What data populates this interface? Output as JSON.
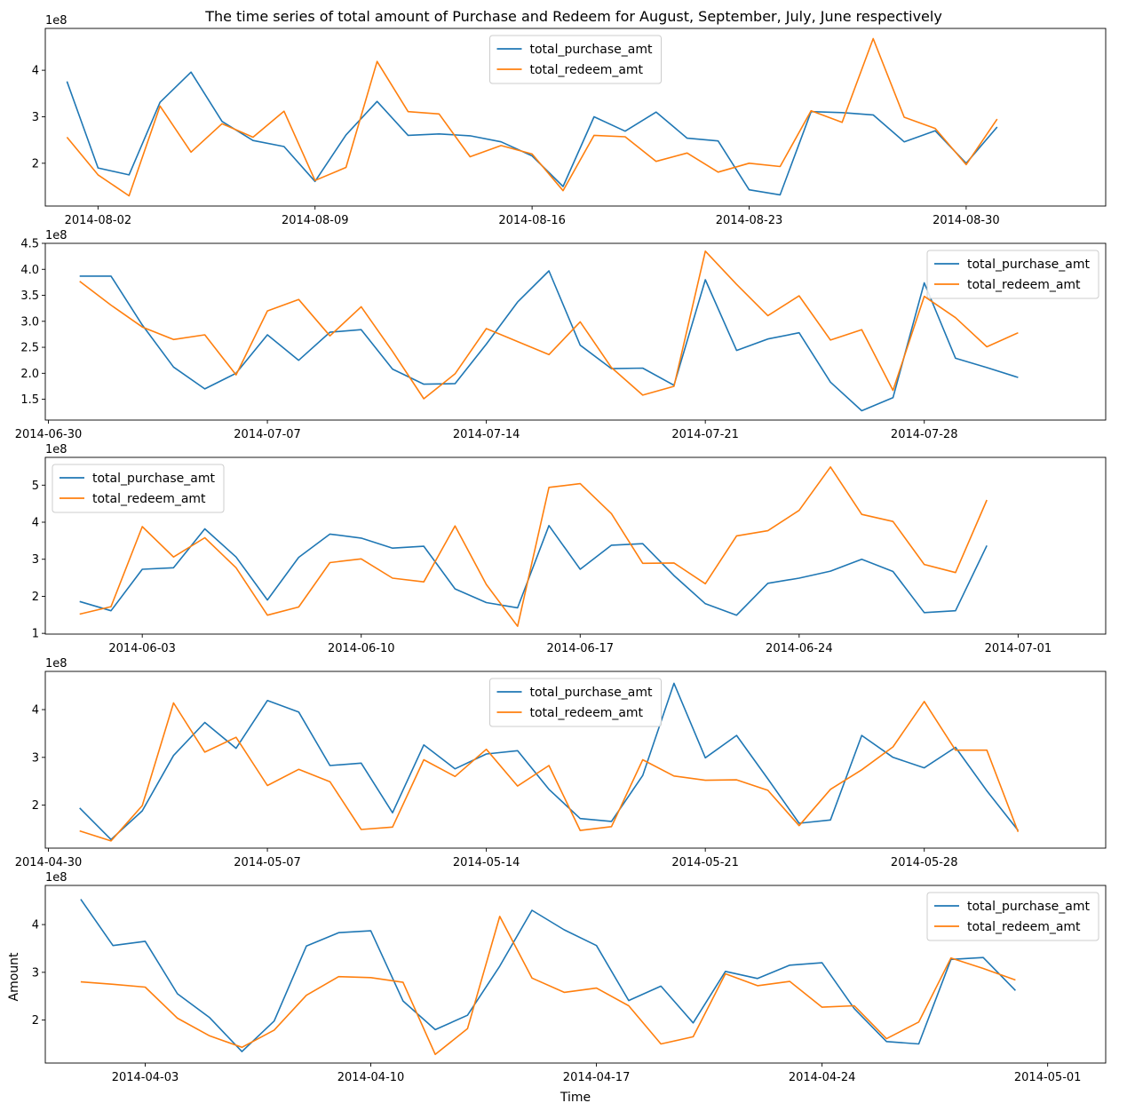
{
  "title": "The time series of total amount of Purchase and Redeem for August, September, July, June respectively",
  "xlabel": "Time",
  "ylabel": "Amount",
  "colors": {
    "purchase": "#1f77b4",
    "redeem": "#ff7f0e"
  },
  "chart_data": [
    {
      "type": "line",
      "month": "August",
      "x_start_day": 1,
      "xlim": [
        0.3,
        34.5
      ],
      "ylim": [
        1.08,
        4.9
      ],
      "ymin_exp_label": "1e8",
      "x_ticks": [
        {
          "day": 2,
          "label": "2014-08-02"
        },
        {
          "day": 9,
          "label": "2014-08-09"
        },
        {
          "day": 16,
          "label": "2014-08-16"
        },
        {
          "day": 23,
          "label": "2014-08-23"
        },
        {
          "day": 30,
          "label": "2014-08-30"
        }
      ],
      "y_ticks": [
        {
          "v": 2,
          "label": "2"
        },
        {
          "v": 3,
          "label": "3"
        },
        {
          "v": 4,
          "label": "4"
        }
      ],
      "legend": "upper-center",
      "series": [
        {
          "name": "total_purchase_amt",
          "key": "purchase",
          "values": [
            3.76,
            1.9,
            1.75,
            3.31,
            3.96,
            2.9,
            2.49,
            2.36,
            1.61,
            2.61,
            3.33,
            2.6,
            2.63,
            2.59,
            2.46,
            2.16,
            1.5,
            3.0,
            2.69,
            3.1,
            2.54,
            2.48,
            1.43,
            1.32,
            3.11,
            3.09,
            3.04,
            2.46,
            2.7,
            2.0,
            2.78
          ]
        },
        {
          "name": "total_redeem_amt",
          "key": "redeem",
          "values": [
            2.56,
            1.75,
            1.3,
            3.23,
            2.24,
            2.85,
            2.56,
            3.12,
            1.63,
            1.91,
            4.19,
            3.11,
            3.06,
            2.14,
            2.38,
            2.2,
            1.41,
            2.6,
            2.57,
            2.04,
            2.22,
            1.81,
            2.0,
            1.93,
            3.13,
            2.88,
            4.68,
            2.99,
            2.75,
            1.97,
            2.95
          ]
        }
      ]
    },
    {
      "type": "line",
      "month": "July",
      "x_start_day": 1,
      "xlim": [
        -0.1,
        33.8
      ],
      "ylim": [
        1.1,
        4.5
      ],
      "ymin_exp_label": "1e8",
      "x_ticks": [
        {
          "day": 0,
          "label": "2014-06-30"
        },
        {
          "day": 7,
          "label": "2014-07-07"
        },
        {
          "day": 14,
          "label": "2014-07-14"
        },
        {
          "day": 21,
          "label": "2014-07-21"
        },
        {
          "day": 28,
          "label": "2014-07-28"
        }
      ],
      "y_ticks": [
        {
          "v": 1.5,
          "label": "1.5"
        },
        {
          "v": 2.0,
          "label": "2.0"
        },
        {
          "v": 2.5,
          "label": "2.5"
        },
        {
          "v": 3.0,
          "label": "3.0"
        },
        {
          "v": 3.5,
          "label": "3.5"
        },
        {
          "v": 4.0,
          "label": "4.0"
        },
        {
          "v": 4.5,
          "label": "4.5"
        }
      ],
      "legend": "upper-right",
      "series": [
        {
          "name": "total_purchase_amt",
          "key": "purchase",
          "values": [
            3.87,
            3.87,
            2.93,
            2.12,
            1.7,
            2.0,
            2.74,
            2.25,
            2.79,
            2.84,
            2.08,
            1.79,
            1.8,
            2.56,
            3.37,
            3.97,
            2.54,
            2.09,
            2.1,
            1.77,
            3.8,
            2.44,
            2.66,
            2.78,
            1.83,
            1.28,
            1.53,
            3.74,
            2.29,
            2.11,
            1.92
          ]
        },
        {
          "name": "total_redeem_amt",
          "key": "redeem",
          "values": [
            3.77,
            3.31,
            2.89,
            2.65,
            2.74,
            1.97,
            3.2,
            3.42,
            2.72,
            3.28,
            2.42,
            1.51,
            1.99,
            2.86,
            2.61,
            2.36,
            2.99,
            2.11,
            1.58,
            1.75,
            4.35,
            3.71,
            3.11,
            3.49,
            2.64,
            2.84,
            1.67,
            3.48,
            3.07,
            2.51,
            2.78
          ]
        }
      ]
    },
    {
      "type": "line",
      "month": "June",
      "x_start_day": 1,
      "xlim": [
        -0.1,
        33.8
      ],
      "ylim": [
        0.98,
        5.75
      ],
      "ymin_exp_label": "1e8",
      "x_ticks": [
        {
          "day": 3,
          "label": "2014-06-03"
        },
        {
          "day": 10,
          "label": "2014-06-10"
        },
        {
          "day": 17,
          "label": "2014-06-17"
        },
        {
          "day": 24,
          "label": "2014-06-24"
        },
        {
          "day": 31,
          "label": "2014-07-01"
        }
      ],
      "y_ticks": [
        {
          "v": 1,
          "label": "1"
        },
        {
          "v": 2,
          "label": "2"
        },
        {
          "v": 3,
          "label": "3"
        },
        {
          "v": 4,
          "label": "4"
        },
        {
          "v": 5,
          "label": "5"
        }
      ],
      "legend": "upper-left",
      "series": [
        {
          "name": "total_purchase_amt",
          "key": "purchase",
          "values": [
            1.86,
            1.61,
            2.73,
            2.77,
            3.82,
            3.06,
            1.9,
            3.05,
            3.68,
            3.57,
            3.3,
            3.35,
            2.2,
            1.83,
            1.69,
            3.91,
            2.73,
            3.38,
            3.42,
            2.56,
            1.8,
            1.49,
            2.35,
            2.49,
            2.68,
            3.0,
            2.67,
            1.56,
            1.61,
            3.37
          ]
        },
        {
          "name": "total_redeem_amt",
          "key": "redeem",
          "values": [
            1.52,
            1.72,
            3.88,
            3.06,
            3.58,
            2.77,
            1.49,
            1.71,
            2.91,
            3.01,
            2.49,
            2.39,
            3.9,
            2.32,
            1.19,
            4.94,
            5.04,
            4.23,
            2.89,
            2.9,
            2.34,
            3.63,
            3.77,
            4.32,
            5.49,
            4.21,
            4.02,
            2.86,
            2.64,
            4.6
          ]
        }
      ]
    },
    {
      "type": "line",
      "month": "May",
      "x_start_day": 1,
      "xlim": [
        -0.1,
        33.8
      ],
      "ylim": [
        1.1,
        4.8
      ],
      "ymin_exp_label": "1e8",
      "x_ticks": [
        {
          "day": 0,
          "label": "2014-04-30"
        },
        {
          "day": 7,
          "label": "2014-05-07"
        },
        {
          "day": 14,
          "label": "2014-05-14"
        },
        {
          "day": 21,
          "label": "2014-05-21"
        },
        {
          "day": 28,
          "label": "2014-05-28"
        }
      ],
      "y_ticks": [
        {
          "v": 2,
          "label": "2"
        },
        {
          "v": 3,
          "label": "3"
        },
        {
          "v": 4,
          "label": "4"
        }
      ],
      "legend": "upper-center",
      "series": [
        {
          "name": "total_purchase_amt",
          "key": "purchase",
          "values": [
            1.94,
            1.28,
            1.88,
            3.04,
            3.73,
            3.19,
            4.19,
            3.95,
            2.83,
            2.88,
            1.84,
            3.26,
            2.76,
            3.07,
            3.14,
            2.33,
            1.72,
            1.66,
            2.62,
            4.55,
            2.99,
            3.46,
            2.55,
            1.62,
            1.69,
            3.46,
            3.0,
            2.78,
            3.21,
            2.3,
            1.47
          ]
        },
        {
          "name": "total_redeem_amt",
          "key": "redeem",
          "values": [
            1.46,
            1.25,
            1.99,
            4.14,
            3.11,
            3.42,
            2.41,
            2.75,
            2.49,
            1.49,
            1.54,
            2.95,
            2.6,
            3.17,
            2.4,
            2.83,
            1.47,
            1.55,
            2.95,
            2.61,
            2.52,
            2.53,
            2.31,
            1.57,
            2.33,
            2.74,
            3.22,
            4.17,
            3.15,
            3.15,
            1.44
          ]
        }
      ]
    },
    {
      "type": "line",
      "month": "April",
      "x_start_day": 1,
      "xlim": [
        -0.1,
        32.8
      ],
      "ylim": [
        1.1,
        4.82
      ],
      "ymin_exp_label": "1e8",
      "x_ticks": [
        {
          "day": 3,
          "label": "2014-04-03"
        },
        {
          "day": 10,
          "label": "2014-04-10"
        },
        {
          "day": 17,
          "label": "2014-04-17"
        },
        {
          "day": 24,
          "label": "2014-04-24"
        },
        {
          "day": 31,
          "label": "2014-05-01"
        }
      ],
      "y_ticks": [
        {
          "v": 2,
          "label": "2"
        },
        {
          "v": 3,
          "label": "3"
        },
        {
          "v": 4,
          "label": "4"
        }
      ],
      "legend": "upper-right",
      "series": [
        {
          "name": "total_purchase_amt",
          "key": "purchase",
          "values": [
            4.53,
            3.56,
            3.65,
            2.55,
            2.05,
            1.34,
            1.98,
            3.55,
            3.83,
            3.87,
            2.4,
            1.8,
            2.1,
            3.13,
            4.3,
            3.89,
            3.56,
            2.41,
            2.71,
            1.94,
            3.02,
            2.87,
            3.15,
            3.2,
            2.24,
            1.55,
            1.5,
            3.27,
            3.31,
            2.62
          ]
        },
        {
          "name": "total_redeem_amt",
          "key": "redeem",
          "values": [
            2.8,
            2.75,
            2.69,
            2.04,
            1.67,
            1.43,
            1.79,
            2.52,
            2.91,
            2.89,
            2.79,
            1.28,
            1.82,
            4.17,
            2.88,
            2.58,
            2.67,
            2.3,
            1.5,
            1.65,
            2.97,
            2.72,
            2.81,
            2.27,
            2.3,
            1.61,
            1.96,
            3.3,
            3.08,
            2.84
          ]
        }
      ]
    }
  ]
}
